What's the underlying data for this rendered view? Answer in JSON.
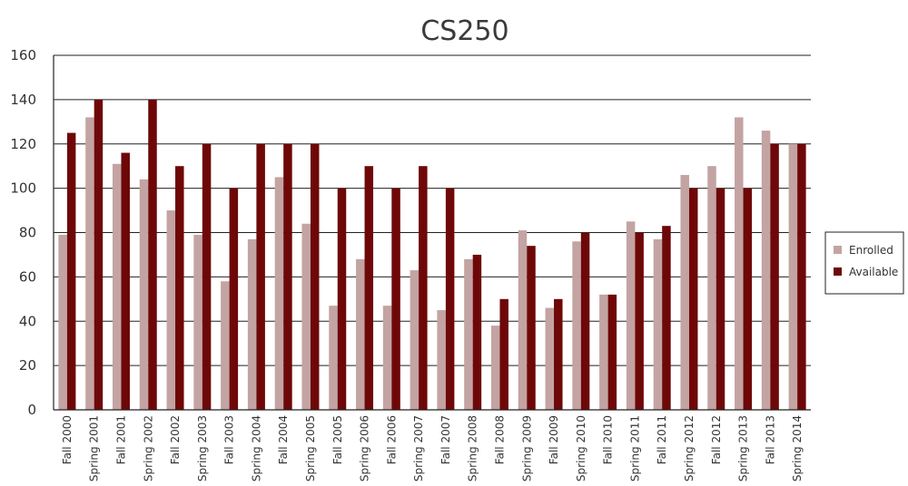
{
  "chart_data": {
    "type": "bar",
    "title": "CS250",
    "ylim": [
      0,
      160
    ],
    "yticks": [
      0,
      20,
      40,
      60,
      80,
      100,
      120,
      140,
      160
    ],
    "grid": true,
    "legend_position": "right",
    "categories": [
      "Fall 2000",
      "Spring 2001",
      "Fall 2001",
      "Spring 2002",
      "Fall 2002",
      "Spring 2003",
      "Fall 2003",
      "Spring 2004",
      "Fall 2004",
      "Spring 2005",
      "Fall 2005",
      "Spring 2006",
      "Fall 2006",
      "Spring 2007",
      "Fall 2007",
      "Spring 2008",
      "Fall 2008",
      "Spring 2009",
      "Fall 2009",
      "Spring 2010",
      "Fall 2010",
      "Spring 2011",
      "Fall 2011",
      "Spring 2012",
      "Fall 2012",
      "Spring 2013",
      "Fall 2013",
      "Spring 2014"
    ],
    "series": [
      {
        "name": "Enrolled",
        "color": "#c4a3a3",
        "values": [
          79,
          132,
          111,
          104,
          90,
          79,
          58,
          77,
          105,
          84,
          47,
          68,
          47,
          63,
          45,
          68,
          38,
          81,
          46,
          76,
          52,
          85,
          77,
          106,
          110,
          132,
          126,
          120
        ]
      },
      {
        "name": "Available",
        "color": "#6e0808",
        "values": [
          125,
          140,
          116,
          140,
          110,
          120,
          100,
          120,
          120,
          120,
          100,
          110,
          100,
          110,
          100,
          70,
          50,
          74,
          50,
          80,
          52,
          80,
          83,
          100,
          100,
          100,
          120,
          120
        ]
      }
    ]
  }
}
